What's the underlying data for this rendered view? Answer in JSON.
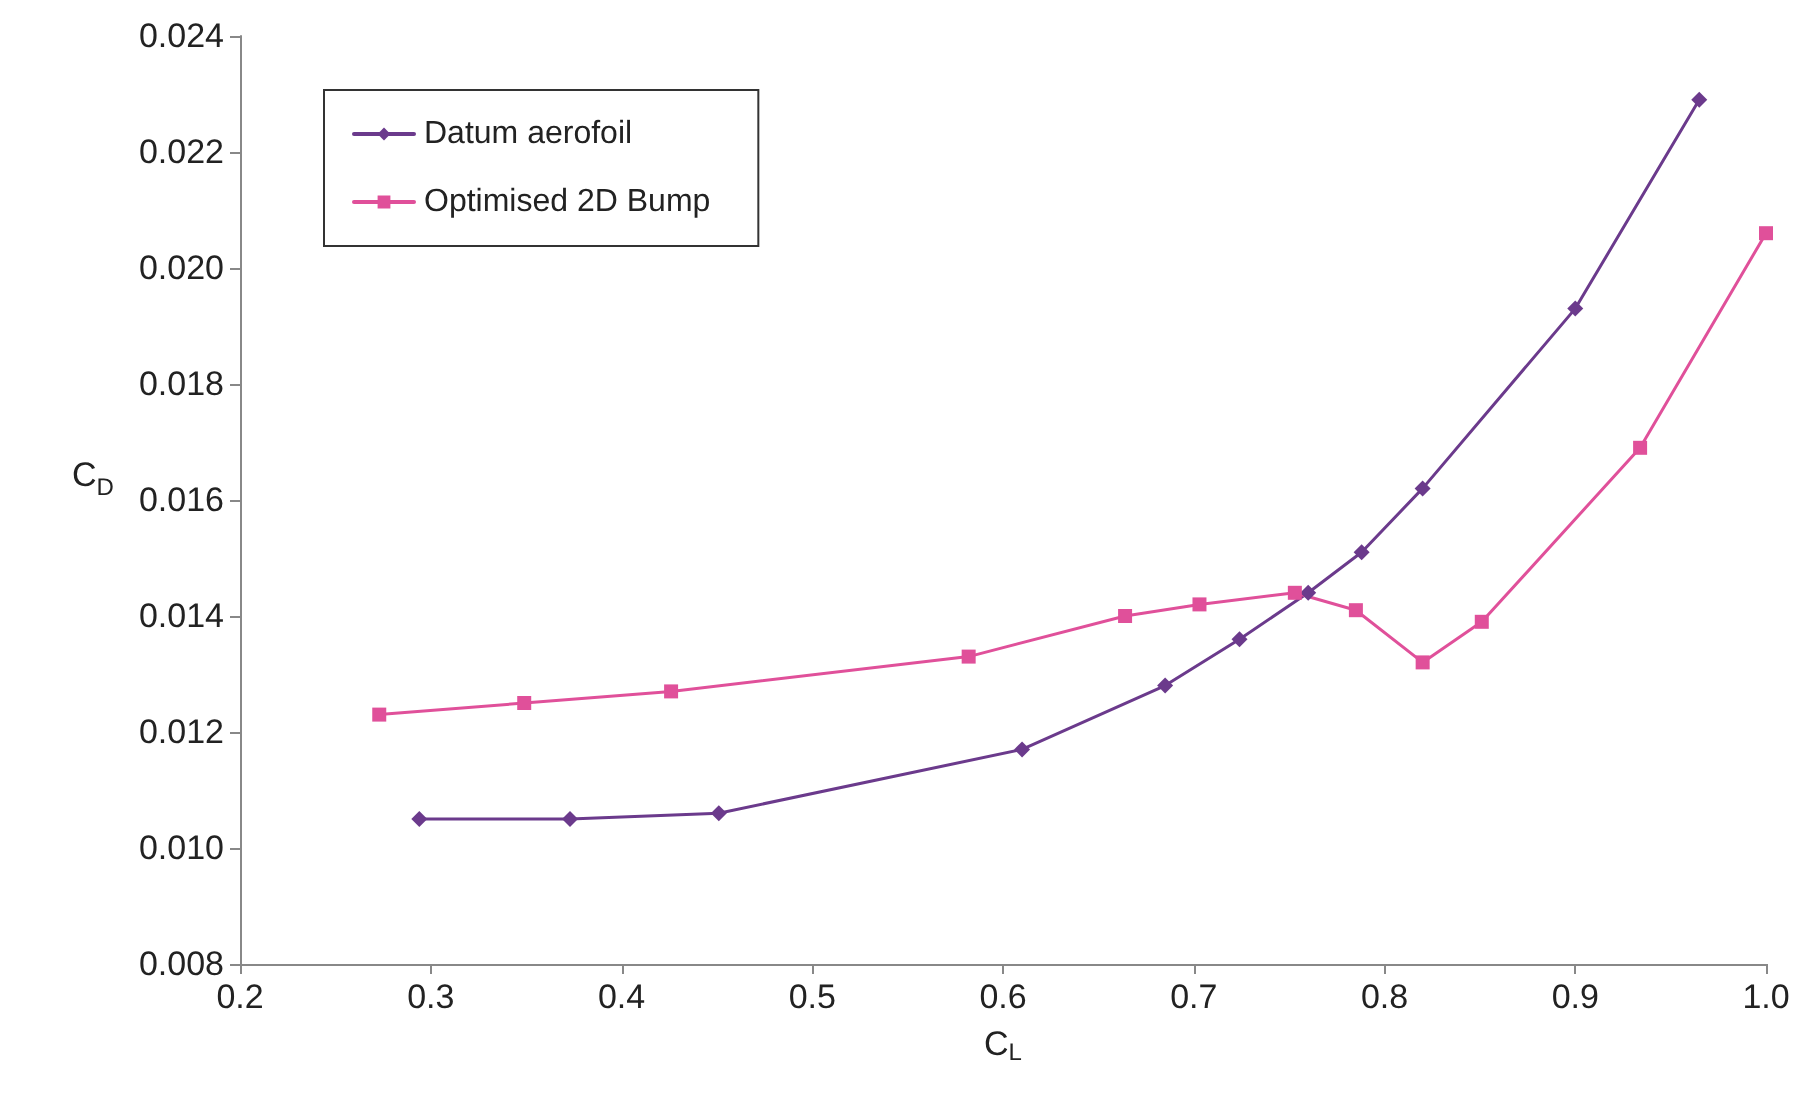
{
  "chart_data": {
    "type": "line",
    "xlabel": "C$_{L}$",
    "ylabel": "C$_{D}$",
    "xlim": [
      0.2,
      1.0
    ],
    "xticks": [
      0.2,
      0.3,
      0.4,
      0.5,
      0.6,
      0.7,
      0.8,
      0.9,
      {
        "value": 1.0,
        "label": "1.0"
      }
    ],
    "ylim": [
      0.008,
      0.024
    ],
    "yticks": [
      0.008,
      {
        "value": 0.01,
        "label": "0.010"
      },
      0.012,
      0.014,
      0.016,
      0.018,
      {
        "value": 0.02,
        "label": "0.020"
      },
      0.022,
      0.024
    ],
    "grid": false,
    "legend": "top left",
    "line_style": "solid",
    "series": [
      {
        "name": "Datum aerofoil",
        "color": "#6b3a8c",
        "marker": "diamond",
        "x": [
          0.294,
          0.373,
          0.451,
          0.61,
          0.685,
          0.724,
          0.76,
          0.788,
          0.82,
          0.9,
          0.965
        ],
        "values": [
          0.0105,
          0.0105,
          0.0106,
          0.0117,
          0.0128,
          0.0136,
          0.0144,
          0.0151,
          0.0162,
          0.0193,
          0.0229
        ]
      },
      {
        "name": "Optimised 2D Bump",
        "color": "#e0509a",
        "marker": "square",
        "x": [
          0.273,
          0.349,
          0.426,
          0.582,
          0.664,
          0.703,
          0.753,
          0.785,
          0.82,
          0.851,
          0.934,
          1.0
        ],
        "values": [
          0.0123,
          0.0125,
          0.0127,
          0.0133,
          0.014,
          0.0142,
          0.0144,
          0.0141,
          0.0132,
          0.0139,
          0.0169,
          0.0206
        ]
      }
    ]
  }
}
